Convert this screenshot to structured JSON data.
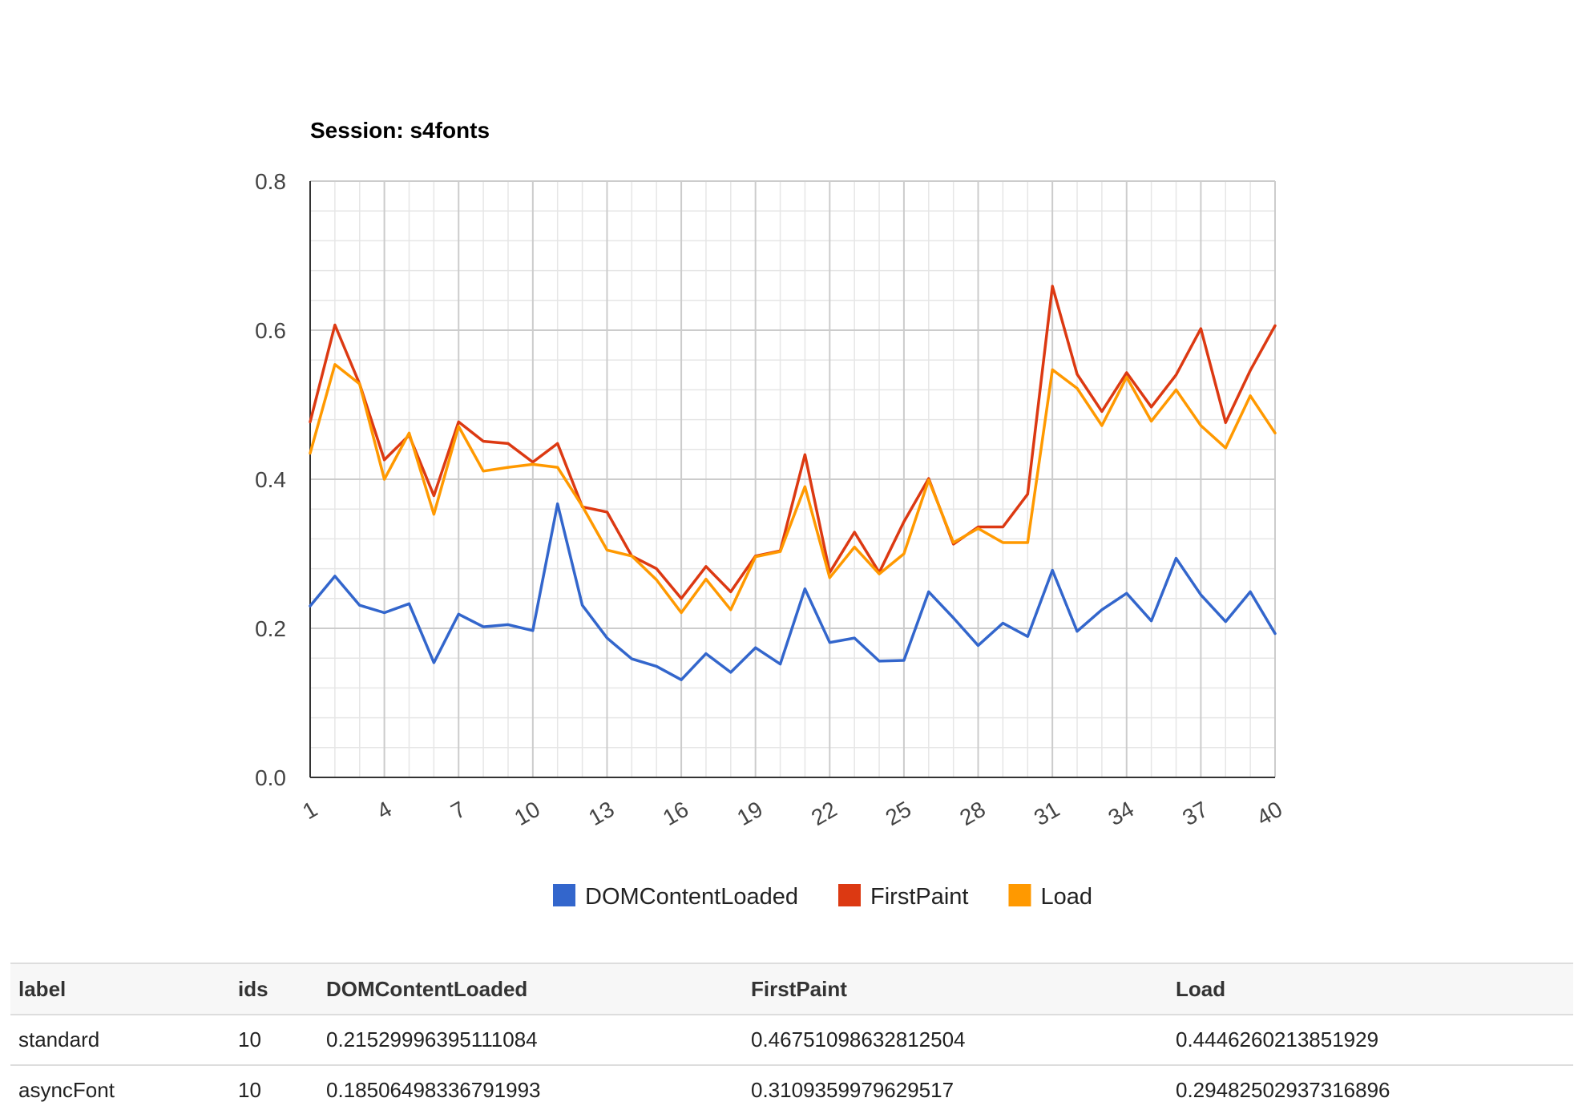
{
  "chart_data": {
    "type": "line",
    "title": "Session: s4fonts",
    "xlabel": "",
    "ylabel": "",
    "x": [
      1,
      2,
      3,
      4,
      5,
      6,
      7,
      8,
      9,
      10,
      11,
      12,
      13,
      14,
      15,
      16,
      17,
      18,
      19,
      20,
      21,
      22,
      23,
      24,
      25,
      26,
      27,
      28,
      29,
      30,
      31,
      32,
      33,
      34,
      35,
      36,
      37,
      38,
      39,
      40
    ],
    "x_tick_labels": [
      "1",
      "4",
      "7",
      "10",
      "13",
      "16",
      "19",
      "22",
      "25",
      "28",
      "31",
      "34",
      "37",
      "40"
    ],
    "y_tick_labels": [
      "0.0",
      "0.2",
      "0.4",
      "0.6",
      "0.8"
    ],
    "ylim": [
      0,
      0.8
    ],
    "grid": true,
    "legend_position": "bottom",
    "series": [
      {
        "name": "DOMContentLoaded",
        "color": "#3366cc",
        "values": [
          0.23,
          0.27,
          0.231,
          0.221,
          0.233,
          0.154,
          0.219,
          0.202,
          0.205,
          0.197,
          0.367,
          0.231,
          0.187,
          0.159,
          0.149,
          0.131,
          0.166,
          0.141,
          0.174,
          0.152,
          0.253,
          0.181,
          0.187,
          0.156,
          0.157,
          0.249,
          0.214,
          0.177,
          0.207,
          0.189,
          0.278,
          0.196,
          0.225,
          0.247,
          0.21,
          0.294,
          0.245,
          0.209,
          0.249,
          0.193
        ]
      },
      {
        "name": "FirstPaint",
        "color": "#dc3912",
        "values": [
          0.477,
          0.607,
          0.528,
          0.426,
          0.459,
          0.378,
          0.477,
          0.451,
          0.448,
          0.423,
          0.448,
          0.363,
          0.356,
          0.297,
          0.28,
          0.24,
          0.283,
          0.249,
          0.297,
          0.304,
          0.433,
          0.275,
          0.329,
          0.275,
          0.343,
          0.401,
          0.313,
          0.336,
          0.336,
          0.38,
          0.659,
          0.541,
          0.491,
          0.543,
          0.497,
          0.54,
          0.602,
          0.476,
          0.546,
          0.606
        ]
      },
      {
        "name": "Load",
        "color": "#ff9900",
        "values": [
          0.435,
          0.554,
          0.528,
          0.4,
          0.462,
          0.353,
          0.471,
          0.411,
          0.416,
          0.42,
          0.416,
          0.364,
          0.305,
          0.297,
          0.265,
          0.221,
          0.266,
          0.225,
          0.296,
          0.303,
          0.39,
          0.268,
          0.309,
          0.273,
          0.3,
          0.399,
          0.315,
          0.334,
          0.315,
          0.315,
          0.547,
          0.522,
          0.472,
          0.537,
          0.478,
          0.52,
          0.472,
          0.442,
          0.512,
          0.462
        ]
      }
    ]
  },
  "table": {
    "headers": [
      "label",
      "ids",
      "DOMContentLoaded",
      "FirstPaint",
      "Load"
    ],
    "rows": [
      [
        "standard",
        "10",
        "0.21529996395111084",
        "0.46751098632812504",
        "0.4446260213851929"
      ],
      [
        "asyncFont",
        "10",
        "0.18506498336791993",
        "0.3109359979629517",
        "0.29482502937316896"
      ]
    ]
  }
}
